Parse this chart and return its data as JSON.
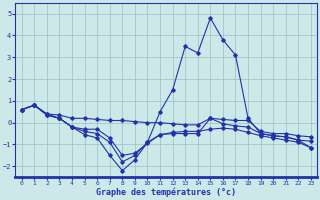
{
  "xlabel": "Graphe des températures (°c)",
  "xlim": [
    -0.5,
    23.5
  ],
  "ylim": [
    -2.5,
    5.5
  ],
  "yticks": [
    -2,
    -1,
    0,
    1,
    2,
    3,
    4,
    5
  ],
  "xticks": [
    0,
    1,
    2,
    3,
    4,
    5,
    6,
    7,
    8,
    9,
    10,
    11,
    12,
    13,
    14,
    15,
    16,
    17,
    18,
    19,
    20,
    21,
    22,
    23
  ],
  "background_color": "#cde8e8",
  "grid_color": "#9bbfbf",
  "line_color": "#2233aa",
  "series": [
    [
      0.6,
      0.8,
      0.4,
      0.35,
      0.2,
      0.2,
      0.15,
      0.1,
      0.1,
      0.05,
      0.0,
      0.0,
      -0.05,
      -0.1,
      -0.1,
      0.2,
      0.15,
      0.1,
      0.1,
      -0.4,
      -0.5,
      -0.5,
      -0.6,
      -0.65
    ],
    [
      0.6,
      0.8,
      0.4,
      0.2,
      -0.2,
      -0.3,
      -0.3,
      -0.7,
      -1.5,
      -1.4,
      -0.95,
      -0.55,
      -0.5,
      -0.5,
      -0.5,
      0.2,
      -0.05,
      -0.15,
      -0.2,
      -0.5,
      -0.6,
      -0.65,
      -0.8,
      -0.85
    ],
    [
      0.6,
      0.8,
      0.35,
      0.2,
      -0.2,
      -0.55,
      -0.7,
      -1.5,
      -2.2,
      -1.7,
      -0.9,
      0.5,
      1.5,
      3.5,
      3.2,
      4.8,
      3.8,
      3.1,
      0.2,
      -0.5,
      -0.6,
      -0.65,
      -0.8,
      -1.15
    ],
    [
      0.6,
      0.8,
      0.35,
      0.2,
      -0.2,
      -0.4,
      -0.5,
      -0.9,
      -1.8,
      -1.5,
      -0.9,
      -0.55,
      -0.45,
      -0.4,
      -0.4,
      -0.3,
      -0.25,
      -0.3,
      -0.45,
      -0.6,
      -0.7,
      -0.8,
      -0.9,
      -1.15
    ]
  ]
}
